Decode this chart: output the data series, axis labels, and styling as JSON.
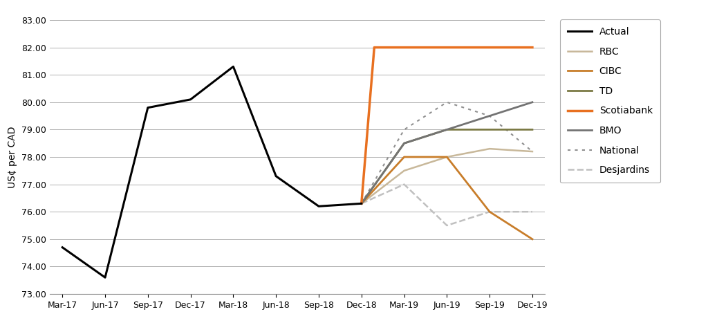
{
  "ylabel": "US¢ per CAD",
  "ylim": [
    73.0,
    83.0
  ],
  "yticks": [
    73.0,
    74.0,
    75.0,
    76.0,
    77.0,
    78.0,
    79.0,
    80.0,
    81.0,
    82.0,
    83.0
  ],
  "xtick_labels": [
    "Mar-17",
    "Jun-17",
    "Sep-17",
    "Dec-17",
    "Mar-18",
    "Jun-18",
    "Sep-18",
    "Dec-18",
    "Mar-19",
    "Jun-19",
    "Sep-19",
    "Dec-19"
  ],
  "actual": {
    "x": [
      0,
      1,
      2,
      3,
      4,
      5,
      6,
      7
    ],
    "y": [
      74.7,
      73.6,
      79.8,
      80.1,
      81.3,
      77.3,
      76.2,
      76.3
    ],
    "color": "#000000",
    "linewidth": 2.2,
    "label": "Actual"
  },
  "rbc": {
    "x": [
      7,
      8,
      9,
      10,
      11
    ],
    "y": [
      76.3,
      77.5,
      78.0,
      78.3,
      78.2
    ],
    "color": "#C8B89A",
    "linewidth": 1.8,
    "label": "RBC"
  },
  "cibc": {
    "x": [
      7,
      8,
      9,
      10,
      11
    ],
    "y": [
      76.3,
      78.0,
      78.0,
      76.0,
      75.0
    ],
    "color": "#C87D2A",
    "linewidth": 2.0,
    "label": "CIBC"
  },
  "td": {
    "x": [
      7,
      8,
      9,
      10,
      11
    ],
    "y": [
      76.3,
      78.5,
      79.0,
      79.0,
      79.0
    ],
    "color": "#7B7A45",
    "linewidth": 2.0,
    "label": "TD"
  },
  "scotiabank": {
    "x": [
      7,
      7.3,
      11
    ],
    "y": [
      76.3,
      82.0,
      82.0
    ],
    "color": "#E87020",
    "linewidth": 2.5,
    "label": "Scotiabank"
  },
  "bmo": {
    "x": [
      7,
      8,
      9,
      10,
      11
    ],
    "y": [
      76.3,
      78.5,
      79.0,
      79.5,
      80.0
    ],
    "color": "#737373",
    "linewidth": 2.0,
    "label": "BMO"
  },
  "national": {
    "x": [
      7,
      8,
      9,
      10,
      11
    ],
    "y": [
      76.3,
      79.0,
      80.0,
      79.5,
      78.2
    ],
    "color": "#909090",
    "linewidth": 1.5,
    "linestyle": "dotted",
    "label": "National"
  },
  "desjardins": {
    "x": [
      7,
      8,
      9,
      10,
      11
    ],
    "y": [
      76.3,
      77.0,
      75.5,
      76.0,
      76.0
    ],
    "color": "#C0C0C0",
    "linewidth": 1.8,
    "linestyle": "dashed",
    "label": "Desjardins"
  },
  "background_color": "#ffffff",
  "grid_color": "#b0b0b0",
  "legend_order": [
    "actual",
    "rbc",
    "cibc",
    "td",
    "scotiabank",
    "bmo",
    "national",
    "desjardins"
  ]
}
